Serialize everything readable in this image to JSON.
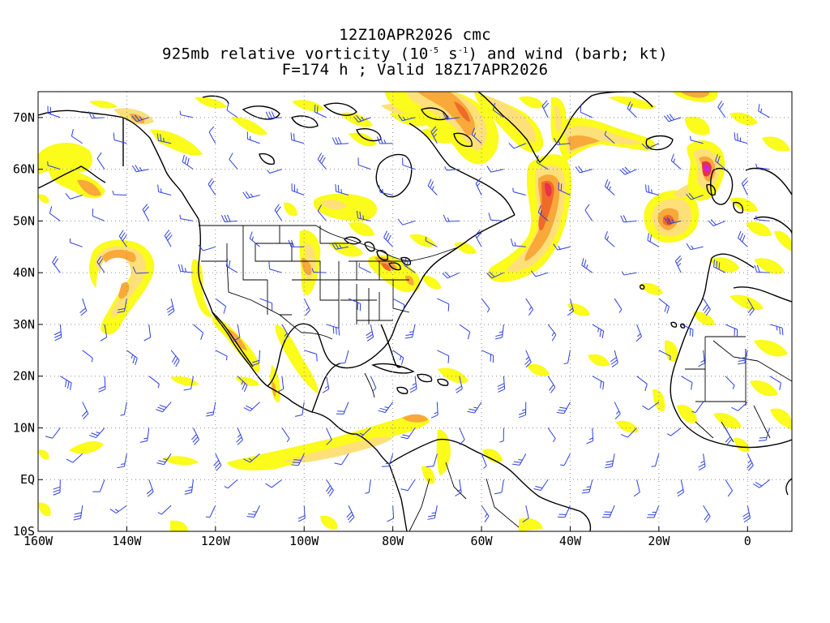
{
  "title": {
    "line1": "12Z10APR2026 cmc",
    "line2_prefix": "925mb relative vorticity (10",
    "line2_exp1": "-5",
    "line2_mid": " s",
    "line2_exp2": "-1",
    "line2_suffix": ") and wind (barb; kt)",
    "line3": "F=174 h ; Valid 18Z17APR2026"
  },
  "axes": {
    "lat_labels": [
      "70N",
      "60N",
      "50N",
      "40N",
      "30N",
      "20N",
      "10N",
      "EQ",
      "10S"
    ],
    "lon_labels": [
      "160W",
      "140W",
      "120W",
      "100W",
      "80W",
      "60W",
      "40W",
      "20W",
      "0"
    ],
    "lat_values": [
      70,
      60,
      50,
      40,
      30,
      20,
      10,
      0,
      -10
    ],
    "lon_values": [
      -160,
      -140,
      -120,
      -100,
      -80,
      -60,
      -40,
      -20,
      0
    ],
    "lat_range": [
      -10,
      75
    ],
    "lon_range": [
      -160,
      10
    ],
    "grid": "dotted"
  },
  "colors": {
    "shade_light": "#fbfb1c",
    "shade_mid": "#fde07a",
    "shade_orange": "#f9a83a",
    "shade_dark": "#f06a2a",
    "shade_red": "#e8314a",
    "shade_magenta": "#d21ce0",
    "barb": "#2c3fe0",
    "coast": "#000000",
    "grid": "#8c8c8c"
  }
}
